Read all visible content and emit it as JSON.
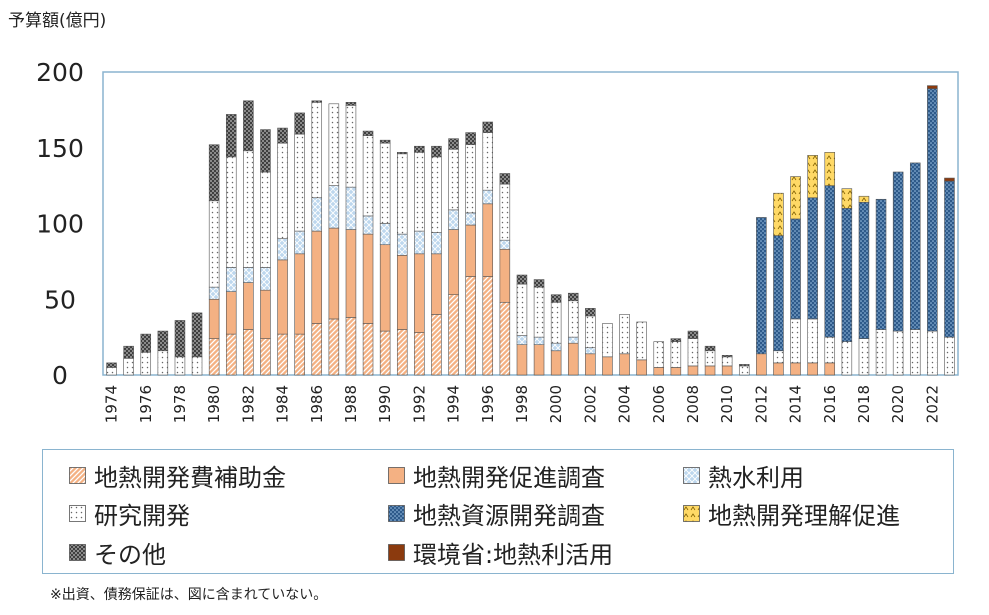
{
  "unit_label": "予算額(億円)",
  "footnote": "※出資、債務保証は、図に含まれていない。",
  "colors": {
    "subsidy": "#f4b183",
    "promotion": "#f4b183",
    "heat_water": "#bdd7ee",
    "research": "#ffffff",
    "resource_survey": "#2e5a8a",
    "understanding": "#ffd966",
    "other": "#7f7f7f",
    "env_ministry": "#8b3a0e",
    "frame": "#8ab4cf"
  },
  "chart_data": {
    "type": "bar",
    "stacked": true,
    "ylabel": "予算額(億円)",
    "ylim": [
      0,
      200
    ],
    "yticks": [
      0,
      50,
      100,
      150,
      200
    ],
    "x": [
      1974,
      1975,
      1976,
      1977,
      1978,
      1979,
      1980,
      1981,
      1982,
      1983,
      1984,
      1985,
      1986,
      1987,
      1988,
      1989,
      1990,
      1991,
      1992,
      1993,
      1994,
      1995,
      1996,
      1997,
      1998,
      1999,
      2000,
      2001,
      2002,
      2003,
      2004,
      2005,
      2006,
      2007,
      2008,
      2009,
      2010,
      2011,
      2012,
      2013,
      2014,
      2015,
      2016,
      2017,
      2018,
      2019,
      2020,
      2021,
      2022,
      2023
    ],
    "xtick_labels": [
      "1974",
      "1976",
      "1978",
      "1980",
      "1982",
      "1984",
      "1986",
      "1988",
      "1990",
      "1992",
      "1994",
      "1996",
      "1998",
      "2000",
      "2002",
      "2004",
      "2006",
      "2008",
      "2010",
      "2012",
      "2014",
      "2016",
      "2018",
      "2020",
      "2022"
    ],
    "legend_position": "bottom",
    "series": [
      {
        "key": "subsidy",
        "name": "地熱開発費補助金",
        "values": [
          0,
          0,
          0,
          0,
          0,
          0,
          24,
          27,
          30,
          24,
          27,
          27,
          34,
          37,
          38,
          34,
          29,
          30,
          28,
          40,
          53,
          65,
          65,
          48,
          0,
          0,
          0,
          0,
          0,
          0,
          0,
          0,
          0,
          0,
          0,
          0,
          0,
          0,
          0,
          0,
          0,
          0,
          0,
          0,
          0,
          0,
          0,
          0,
          0,
          0
        ]
      },
      {
        "key": "promotion",
        "name": "地熱開発促進調査",
        "values": [
          0,
          0,
          0,
          0,
          0,
          0,
          26,
          28,
          31,
          32,
          49,
          53,
          61,
          60,
          58,
          59,
          57,
          49,
          52,
          40,
          43,
          34,
          48,
          35,
          20,
          20,
          16,
          21,
          14,
          12,
          14,
          10,
          5,
          5,
          6,
          6,
          6,
          0,
          14,
          8,
          8,
          8,
          8,
          0,
          0,
          0,
          0,
          0,
          0,
          0
        ]
      },
      {
        "key": "heat_water",
        "name": "熱水利用",
        "values": [
          0,
          0,
          0,
          0,
          0,
          0,
          8,
          16,
          10,
          15,
          14,
          15,
          22,
          28,
          28,
          12,
          14,
          14,
          15,
          14,
          13,
          8,
          9,
          6,
          6,
          5,
          5,
          4,
          4,
          0,
          0,
          0,
          0,
          0,
          0,
          0,
          0,
          0,
          0,
          0,
          0,
          0,
          0,
          0,
          0,
          0,
          0,
          0,
          0,
          0
        ]
      },
      {
        "key": "research",
        "name": "研究開発",
        "values": [
          5,
          11,
          15,
          16,
          12,
          12,
          57,
          73,
          77,
          63,
          63,
          64,
          63,
          54,
          54,
          53,
          53,
          53,
          52,
          50,
          40,
          45,
          38,
          37,
          34,
          33,
          27,
          24,
          21,
          22,
          26,
          25,
          17,
          17,
          18,
          10,
          6,
          6,
          0,
          8,
          29,
          29,
          17,
          22,
          24,
          30,
          29,
          30,
          29,
          25
        ]
      },
      {
        "key": "resource_survey",
        "name": "地熱資源開発調査",
        "values": [
          0,
          0,
          0,
          0,
          0,
          0,
          0,
          0,
          0,
          0,
          0,
          0,
          0,
          0,
          0,
          0,
          0,
          0,
          0,
          0,
          0,
          0,
          0,
          0,
          0,
          0,
          0,
          0,
          0,
          0,
          0,
          0,
          0,
          0,
          0,
          0,
          0,
          0,
          90,
          76,
          66,
          80,
          100,
          88,
          90,
          86,
          105,
          110,
          160,
          103
        ]
      },
      {
        "key": "understanding",
        "name": "地熱開発理解促進",
        "values": [
          0,
          0,
          0,
          0,
          0,
          0,
          0,
          0,
          0,
          0,
          0,
          0,
          0,
          0,
          0,
          0,
          0,
          0,
          0,
          0,
          0,
          0,
          0,
          0,
          0,
          0,
          0,
          0,
          0,
          0,
          0,
          0,
          0,
          0,
          0,
          0,
          0,
          0,
          0,
          28,
          28,
          28,
          22,
          13,
          4,
          0,
          0,
          0,
          0,
          0
        ]
      },
      {
        "key": "other",
        "name": "その他",
        "values": [
          3,
          8,
          12,
          13,
          24,
          29,
          37,
          28,
          33,
          28,
          10,
          14,
          1,
          0,
          2,
          3,
          2,
          1,
          4,
          7,
          7,
          8,
          7,
          7,
          6,
          5,
          5,
          5,
          5,
          0,
          0,
          0,
          0,
          2,
          5,
          3,
          1,
          1,
          0,
          0,
          0,
          0,
          0,
          0,
          0,
          0,
          0,
          0,
          0,
          0
        ]
      },
      {
        "key": "env_ministry",
        "name": "環境省:地熱利活用",
        "values": [
          0,
          0,
          0,
          0,
          0,
          0,
          0,
          0,
          0,
          0,
          0,
          0,
          0,
          0,
          0,
          0,
          0,
          0,
          0,
          0,
          0,
          0,
          0,
          0,
          0,
          0,
          0,
          0,
          0,
          0,
          0,
          0,
          0,
          0,
          0,
          0,
          0,
          0,
          0,
          0,
          0,
          0,
          0,
          0,
          0,
          0,
          0,
          0,
          2,
          2
        ]
      }
    ]
  },
  "legend": [
    {
      "key": "subsidy",
      "label": "地熱開発費補助金"
    },
    {
      "key": "promotion",
      "label": "地熱開発促進調査"
    },
    {
      "key": "heat_water",
      "label": "熱水利用"
    },
    {
      "key": "research",
      "label": "研究開発"
    },
    {
      "key": "resource_survey",
      "label": "地熱資源開発調査"
    },
    {
      "key": "understanding",
      "label": "地熱開発理解促進"
    },
    {
      "key": "other",
      "label": "その他"
    },
    {
      "key": "env_ministry",
      "label": "環境省:地熱利活用"
    }
  ]
}
